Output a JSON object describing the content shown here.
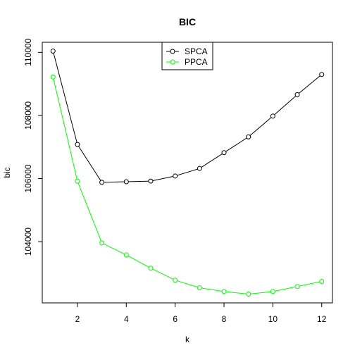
{
  "chart_data": {
    "type": "line",
    "title": "BIC",
    "xlabel": "k",
    "ylabel": "bic",
    "x": [
      1,
      2,
      3,
      4,
      5,
      6,
      7,
      8,
      9,
      10,
      11,
      12
    ],
    "x_ticks": [
      2,
      4,
      6,
      8,
      10,
      12
    ],
    "y_ticks": [
      104000,
      106000,
      108000,
      110000
    ],
    "x_tick_labels": [
      "2",
      "4",
      "6",
      "8",
      "10",
      "12"
    ],
    "y_tick_labels": [
      "104000",
      "106000",
      "108000",
      "110000"
    ],
    "xlim": [
      0.56,
      12.44
    ],
    "ylim": [
      102060,
      110320
    ],
    "grid": false,
    "legend_position": "top-center",
    "series": [
      {
        "name": "SPCA",
        "color": "#000000",
        "values": [
          110040,
          107080,
          105880,
          105900,
          105920,
          106080,
          106320,
          106820,
          107320,
          107980,
          108660,
          109300
        ]
      },
      {
        "name": "PPCA",
        "color": "#00ff00",
        "values": [
          109220,
          105920,
          103960,
          103580,
          103160,
          102780,
          102540,
          102420,
          102340,
          102420,
          102580,
          102740
        ]
      }
    ]
  }
}
